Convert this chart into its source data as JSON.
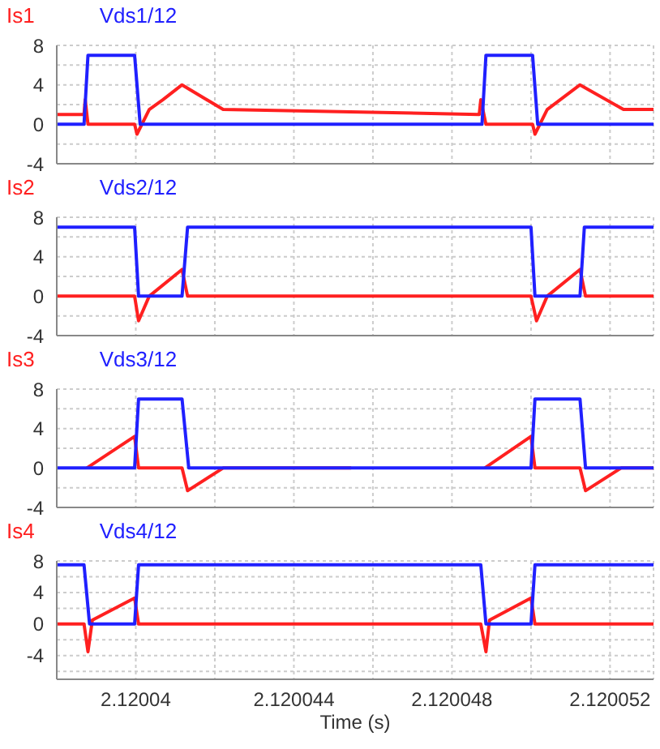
{
  "chart_data": [
    {
      "type": "line",
      "legend": "top left",
      "grid": true,
      "tick_labels": "y",
      "xlim": [
        2.120038,
        2.1200531
      ],
      "ylim": [
        -4,
        8
      ],
      "xticks": [
        {
          "value": 2.12004,
          "label": null
        },
        {
          "value": 2.120042,
          "label": null
        },
        {
          "value": 2.120044,
          "label": null
        },
        {
          "value": 2.120046,
          "label": null
        },
        {
          "value": 2.120048,
          "label": null
        },
        {
          "value": 2.12005,
          "label": null
        },
        {
          "value": 2.120052,
          "label": null
        }
      ],
      "yticks": [
        8,
        {
          "value": 6,
          "label": null
        },
        4,
        {
          "value": 2,
          "label": null
        },
        0,
        {
          "value": -2,
          "label": null
        },
        -4
      ],
      "series": [
        {
          "name": "Is1",
          "color": "#ff2020",
          "x": [
            2.120038,
            2.12003869,
            2.12003872,
            2.12003879,
            2.12003997,
            2.12004003,
            2.12004034,
            2.12004069,
            2.12004117,
            2.12004221,
            2.12004869,
            2.12004873,
            2.12004886,
            2.12005004,
            2.1200501,
            2.12005041,
            2.12005124,
            2.12005234,
            2.1200531
          ],
          "values": [
            1,
            1,
            2.5,
            0,
            0,
            -1,
            1.5,
            2.5,
            4,
            1.5,
            1,
            2.5,
            0,
            0,
            -1,
            1.5,
            4,
            1.5,
            1.5
          ]
        },
        {
          "name": "Vds1/12",
          "color": "#2020ff",
          "x": [
            2.120038,
            2.12003869,
            2.12003879,
            2.12003997,
            2.12004011,
            2.12004876,
            2.12004886,
            2.12005004,
            2.12005017,
            2.1200531
          ],
          "values": [
            0,
            0,
            7,
            7,
            0,
            0,
            7,
            7,
            0,
            0
          ]
        }
      ]
    },
    {
      "type": "line",
      "legend": "top left",
      "grid": true,
      "tick_labels": "y",
      "xlim": [
        2.120038,
        2.1200531
      ],
      "ylim": [
        -4,
        8
      ],
      "xticks": [
        {
          "value": 2.12004,
          "label": null
        },
        {
          "value": 2.120042,
          "label": null
        },
        {
          "value": 2.120044,
          "label": null
        },
        {
          "value": 2.120046,
          "label": null
        },
        {
          "value": 2.120048,
          "label": null
        },
        {
          "value": 2.12005,
          "label": null
        },
        {
          "value": 2.120052,
          "label": null
        }
      ],
      "yticks": [
        8,
        {
          "value": 6,
          "label": null
        },
        4,
        {
          "value": 2,
          "label": null
        },
        0,
        {
          "value": -2,
          "label": null
        },
        -4
      ],
      "series": [
        {
          "name": "Is2",
          "color": "#ff2020",
          "x": [
            2.120038,
            2.12003997,
            2.12004007,
            2.12004034,
            2.12004117,
            2.12004131,
            2.12005,
            2.12005014,
            2.12005041,
            2.12005124,
            2.12005138,
            2.1200531
          ],
          "values": [
            0,
            0,
            -2.5,
            0,
            2.7,
            0,
            0,
            -2.5,
            0,
            2.7,
            0,
            0
          ]
        },
        {
          "name": "Vds2/12",
          "color": "#2020ff",
          "x": [
            2.120038,
            2.12003997,
            2.12004007,
            2.12004117,
            2.12004131,
            2.12005,
            2.1200501,
            2.12005124,
            2.12005135,
            2.1200531
          ],
          "values": [
            7,
            7,
            0,
            0,
            7,
            7,
            0,
            0,
            7,
            7
          ]
        }
      ]
    },
    {
      "type": "line",
      "legend": "top left",
      "grid": true,
      "tick_labels": "y",
      "xlim": [
        2.120038,
        2.1200531
      ],
      "ylim": [
        -4,
        8
      ],
      "xticks": [
        {
          "value": 2.12004,
          "label": null
        },
        {
          "value": 2.120042,
          "label": null
        },
        {
          "value": 2.120044,
          "label": null
        },
        {
          "value": 2.120046,
          "label": null
        },
        {
          "value": 2.120048,
          "label": null
        },
        {
          "value": 2.12005,
          "label": null
        },
        {
          "value": 2.120052,
          "label": null
        }
      ],
      "yticks": [
        8,
        {
          "value": 6,
          "label": null
        },
        4,
        {
          "value": 2,
          "label": null
        },
        0,
        {
          "value": -2,
          "label": null
        },
        -4
      ],
      "series": [
        {
          "name": "Is3",
          "color": "#ff2020",
          "x": [
            2.12003876,
            2.12003997,
            2.12004007,
            2.12004117,
            2.12004131,
            2.12004221,
            2.12004545,
            2.120047,
            2.12004883,
            2.12005,
            2.1200501,
            2.12005124,
            2.12005138,
            2.12005228,
            2.1200531
          ],
          "values": [
            0,
            3.2,
            0,
            0,
            -2.3,
            0,
            0,
            null,
            0,
            3.2,
            0,
            0,
            -2.3,
            0,
            0
          ]
        },
        {
          "name": "Vds3/12",
          "color": "#2020ff",
          "x": [
            2.120038,
            2.12003997,
            2.12004007,
            2.12004117,
            2.12004134,
            2.12005,
            2.1200501,
            2.12005124,
            2.12005138,
            2.1200531
          ],
          "values": [
            0,
            0,
            7,
            7,
            0,
            0,
            7,
            7,
            0,
            0
          ]
        }
      ]
    },
    {
      "type": "line",
      "legend": "top left",
      "grid": true,
      "xlabel": "Time (s)",
      "xlim": [
        2.120038,
        2.1200531
      ],
      "ylim": [
        -7,
        8
      ],
      "xticks": [
        {
          "value": 2.12004,
          "label": "2.12004"
        },
        {
          "value": 2.120042,
          "label": null
        },
        {
          "value": 2.120044,
          "label": "2.120044"
        },
        {
          "value": 2.120046,
          "label": null
        },
        {
          "value": 2.120048,
          "label": "2.120048"
        },
        {
          "value": 2.12005,
          "label": null
        },
        {
          "value": 2.120052,
          "label": "2.120052"
        }
      ],
      "yticks": [
        8,
        {
          "value": 6,
          "label": null
        },
        4,
        {
          "value": 2,
          "label": null
        },
        0,
        {
          "value": -2,
          "label": null
        },
        -4,
        {
          "value": -6,
          "label": null
        }
      ],
      "series": [
        {
          "name": "Is4",
          "color": "#ff2020",
          "x": [
            2.120038,
            2.12003869,
            2.12003879,
            2.1200389,
            2.12003997,
            2.12004007,
            2.12004873,
            2.12004886,
            2.12004895,
            2.12005,
            2.1200501,
            2.1200531
          ],
          "values": [
            0,
            0,
            -3.5,
            0.5,
            3.3,
            0,
            0,
            -3.5,
            0.5,
            3.3,
            0,
            0
          ]
        },
        {
          "name": "Vds4/12",
          "color": "#2020ff",
          "x": [
            2.120038,
            2.12003869,
            2.12003883,
            2.12003997,
            2.12004007,
            2.12004873,
            2.12004886,
            2.12005,
            2.1200501,
            2.1200531
          ],
          "values": [
            7.5,
            7.5,
            0,
            0,
            7.5,
            7.5,
            0,
            0,
            7.5,
            7.5
          ]
        }
      ]
    }
  ]
}
